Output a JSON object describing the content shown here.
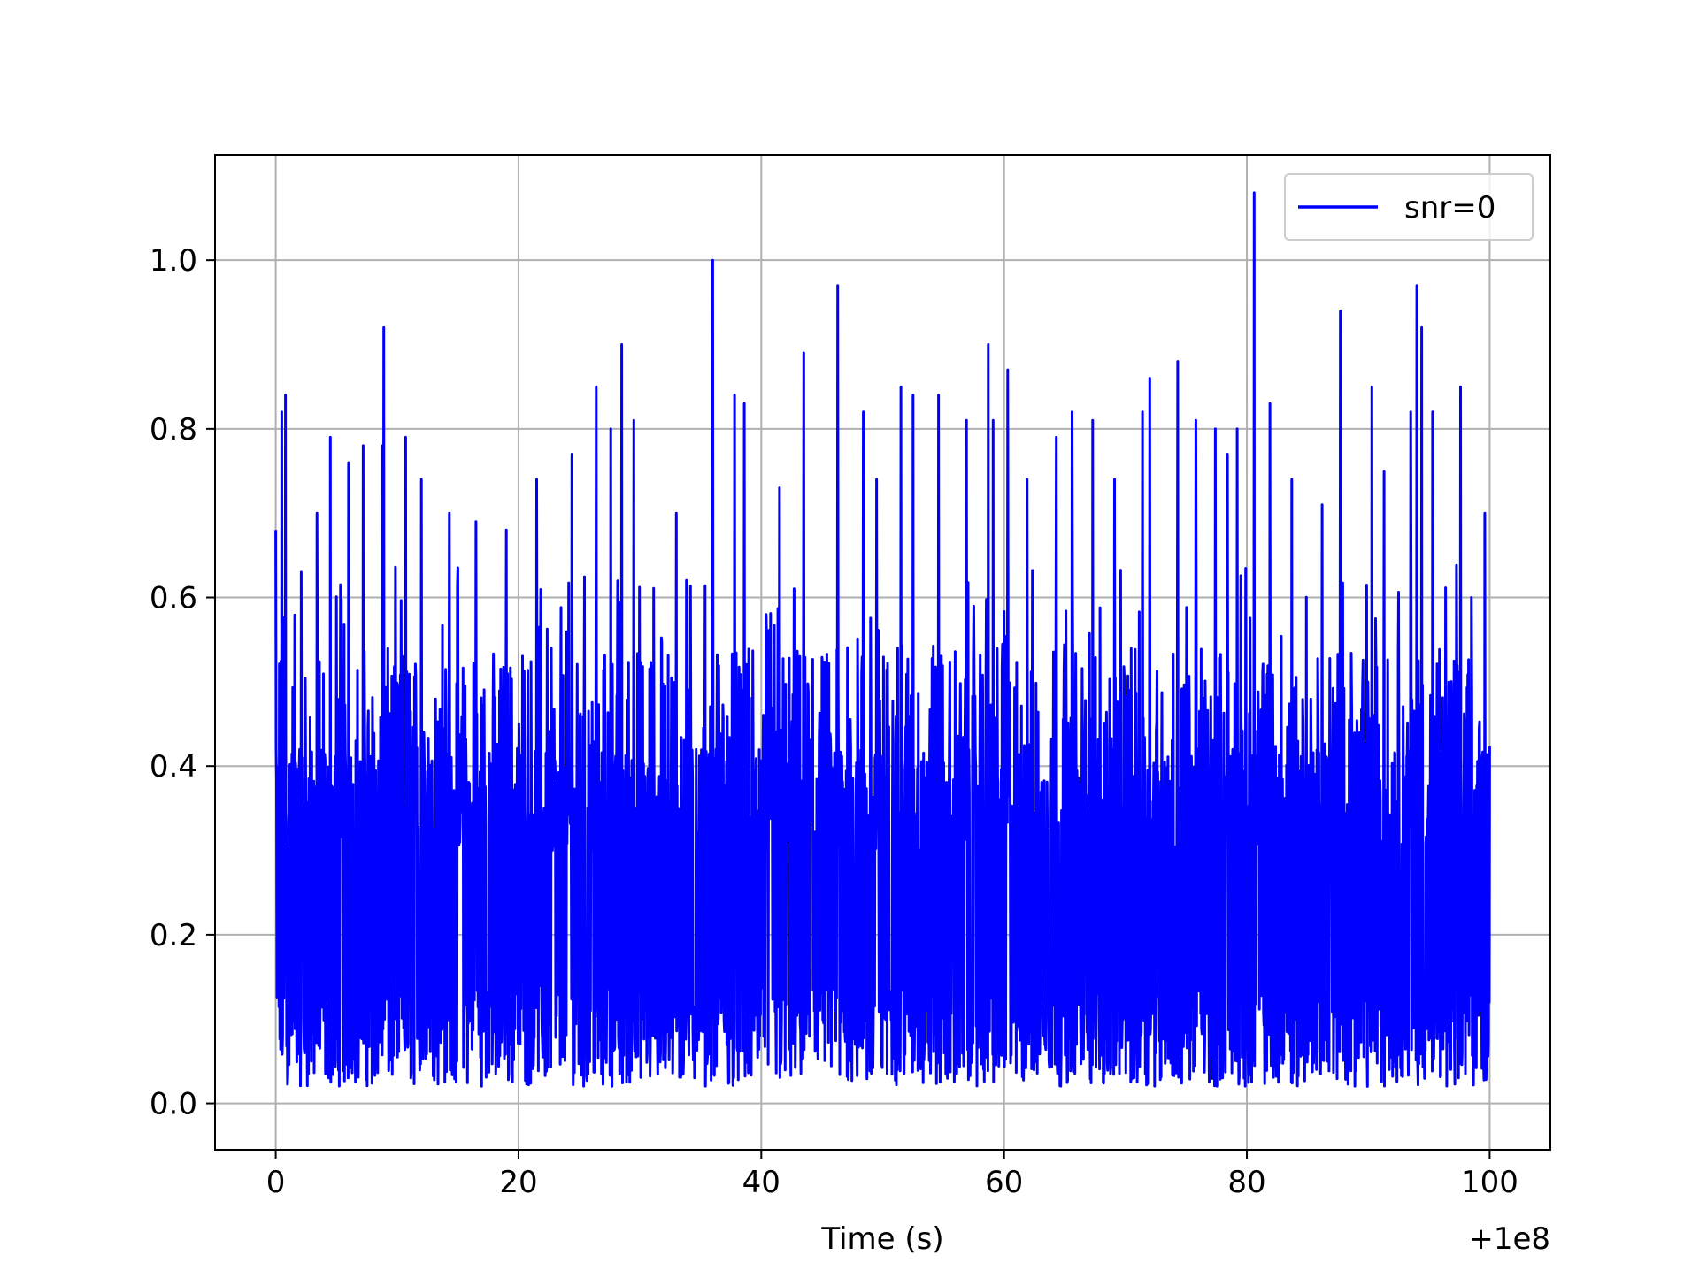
{
  "chart_data": {
    "type": "line",
    "title": "",
    "xlabel": "Time (s)",
    "ylabel": "",
    "x_offset_label": "+1e8",
    "xlim": [
      -5,
      105
    ],
    "ylim": [
      -0.055,
      1.125
    ],
    "x_ticks": [
      0,
      20,
      40,
      60,
      80,
      100
    ],
    "x_tick_labels": [
      "0",
      "20",
      "40",
      "60",
      "80",
      "100"
    ],
    "y_ticks": [
      0.0,
      0.2,
      0.4,
      0.6,
      0.8,
      1.0
    ],
    "y_tick_labels": [
      "0.0",
      "0.2",
      "0.4",
      "0.6",
      "0.8",
      "1.0"
    ],
    "grid": true,
    "legend_position": "top-right",
    "colors": {
      "series": "#0000ff",
      "grid": "#b0b0b0",
      "axes": "#000000"
    },
    "series": [
      {
        "name": "snr=0",
        "x_range": [
          0,
          100
        ],
        "noise_floor_value": 0.0,
        "peaks": [
          {
            "x": 0.0,
            "y": 0.68
          },
          {
            "x": 0.5,
            "y": 0.82
          },
          {
            "x": 0.8,
            "y": 0.84
          },
          {
            "x": 2.1,
            "y": 0.63
          },
          {
            "x": 3.4,
            "y": 0.7
          },
          {
            "x": 4.5,
            "y": 0.79
          },
          {
            "x": 6.0,
            "y": 0.76
          },
          {
            "x": 7.2,
            "y": 0.78
          },
          {
            "x": 8.8,
            "y": 0.78
          },
          {
            "x": 8.9,
            "y": 0.92
          },
          {
            "x": 10.7,
            "y": 0.79
          },
          {
            "x": 12.0,
            "y": 0.74
          },
          {
            "x": 14.3,
            "y": 0.7
          },
          {
            "x": 16.5,
            "y": 0.69
          },
          {
            "x": 19.0,
            "y": 0.68
          },
          {
            "x": 21.5,
            "y": 0.74
          },
          {
            "x": 24.4,
            "y": 0.77
          },
          {
            "x": 26.4,
            "y": 0.85
          },
          {
            "x": 27.6,
            "y": 0.8
          },
          {
            "x": 28.5,
            "y": 0.9
          },
          {
            "x": 29.5,
            "y": 0.81
          },
          {
            "x": 33.0,
            "y": 0.7
          },
          {
            "x": 36.0,
            "y": 1.0
          },
          {
            "x": 37.8,
            "y": 0.84
          },
          {
            "x": 38.6,
            "y": 0.83
          },
          {
            "x": 41.5,
            "y": 0.73
          },
          {
            "x": 43.5,
            "y": 0.89
          },
          {
            "x": 46.3,
            "y": 0.97
          },
          {
            "x": 48.4,
            "y": 0.82
          },
          {
            "x": 49.5,
            "y": 0.74
          },
          {
            "x": 51.5,
            "y": 0.85
          },
          {
            "x": 52.5,
            "y": 0.84
          },
          {
            "x": 54.6,
            "y": 0.84
          },
          {
            "x": 56.9,
            "y": 0.81
          },
          {
            "x": 58.7,
            "y": 0.9
          },
          {
            "x": 59.1,
            "y": 0.81
          },
          {
            "x": 60.3,
            "y": 0.87
          },
          {
            "x": 61.9,
            "y": 0.74
          },
          {
            "x": 64.3,
            "y": 0.79
          },
          {
            "x": 65.6,
            "y": 0.82
          },
          {
            "x": 67.3,
            "y": 0.81
          },
          {
            "x": 69.1,
            "y": 0.74
          },
          {
            "x": 71.4,
            "y": 0.82
          },
          {
            "x": 72.0,
            "y": 0.86
          },
          {
            "x": 74.3,
            "y": 0.88
          },
          {
            "x": 75.8,
            "y": 0.81
          },
          {
            "x": 77.4,
            "y": 0.8
          },
          {
            "x": 78.4,
            "y": 0.77
          },
          {
            "x": 79.2,
            "y": 0.8
          },
          {
            "x": 80.6,
            "y": 1.08
          },
          {
            "x": 81.9,
            "y": 0.83
          },
          {
            "x": 83.7,
            "y": 0.74
          },
          {
            "x": 86.2,
            "y": 0.71
          },
          {
            "x": 87.7,
            "y": 0.94
          },
          {
            "x": 90.3,
            "y": 0.85
          },
          {
            "x": 91.3,
            "y": 0.75
          },
          {
            "x": 93.5,
            "y": 0.82
          },
          {
            "x": 94.0,
            "y": 0.97
          },
          {
            "x": 94.4,
            "y": 0.92
          },
          {
            "x": 95.3,
            "y": 0.82
          },
          {
            "x": 97.6,
            "y": 0.85
          },
          {
            "x": 98.5,
            "y": 0.6
          },
          {
            "x": 99.6,
            "y": 0.7
          }
        ]
      }
    ]
  }
}
